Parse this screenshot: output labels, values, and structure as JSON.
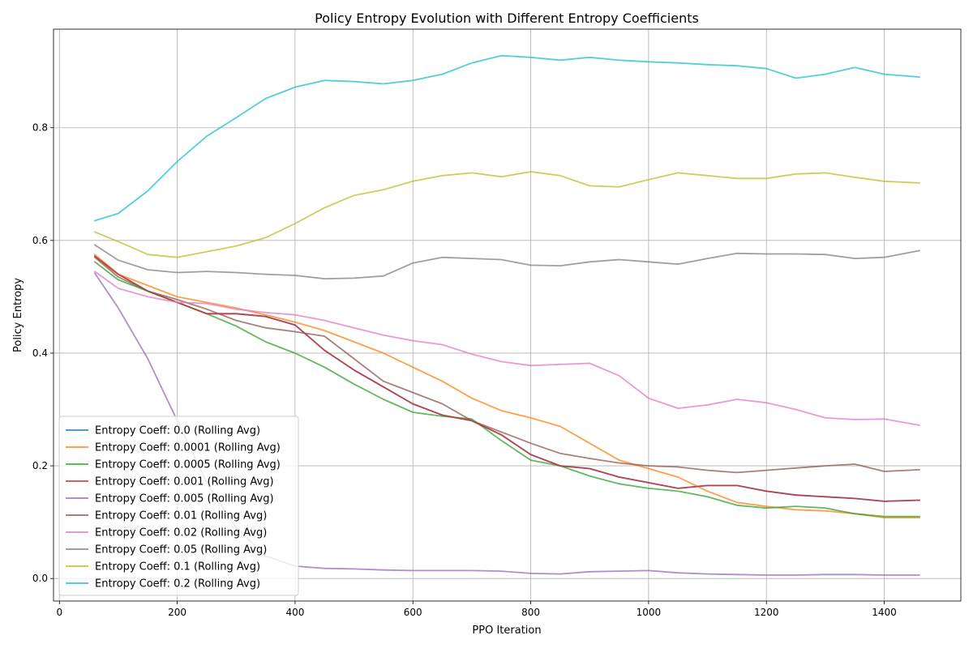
{
  "chart_data": {
    "type": "line",
    "title": "Policy Entropy Evolution with Different Entropy Coefficients",
    "xlabel": "PPO Iteration",
    "ylabel": "Policy Entropy",
    "xlim": [
      -10,
      1530
    ],
    "ylim": [
      -0.04,
      0.975
    ],
    "x_ticks": [
      0,
      200,
      400,
      600,
      800,
      1000,
      1200,
      1400
    ],
    "y_ticks": [
      0.0,
      0.2,
      0.4,
      0.6,
      0.8
    ],
    "x_tick_labels": [
      "0",
      "200",
      "400",
      "600",
      "800",
      "1000",
      "1200",
      "1400"
    ],
    "y_tick_labels": [
      "0.0",
      "0.2",
      "0.4",
      "0.6",
      "0.8"
    ],
    "grid": true,
    "legend_position": "lower-left",
    "x": [
      60,
      100,
      150,
      200,
      250,
      300,
      350,
      400,
      450,
      500,
      550,
      600,
      650,
      700,
      750,
      800,
      850,
      900,
      950,
      1000,
      1050,
      1100,
      1150,
      1200,
      1250,
      1300,
      1350,
      1400,
      1460
    ],
    "series": [
      {
        "name": "Entropy Coeff: 0.0 (Rolling Avg)",
        "color": "#1f77b4",
        "values": [
          0.572,
          0.54,
          0.51,
          0.49,
          0.47,
          0.47,
          0.465,
          0.45,
          0.405,
          0.37,
          0.34,
          0.31,
          0.29,
          0.28,
          0.255,
          0.22,
          0.2,
          0.195,
          0.18,
          0.17,
          0.16,
          0.165,
          0.165,
          0.155,
          0.148,
          0.145,
          0.142,
          0.137,
          0.139
        ]
      },
      {
        "name": "Entropy Coeff: 0.0001 (Rolling Avg)",
        "color": "#ff7f0e",
        "values": [
          0.575,
          0.54,
          0.52,
          0.5,
          0.49,
          0.48,
          0.468,
          0.455,
          0.44,
          0.42,
          0.4,
          0.375,
          0.35,
          0.32,
          0.298,
          0.285,
          0.27,
          0.24,
          0.21,
          0.195,
          0.18,
          0.155,
          0.135,
          0.128,
          0.122,
          0.12,
          0.115,
          0.108,
          0.108
        ]
      },
      {
        "name": "Entropy Coeff: 0.0005 (Rolling Avg)",
        "color": "#2ca02c",
        "values": [
          0.562,
          0.53,
          0.51,
          0.49,
          0.47,
          0.448,
          0.42,
          0.4,
          0.375,
          0.345,
          0.318,
          0.295,
          0.288,
          0.283,
          0.245,
          0.21,
          0.2,
          0.182,
          0.168,
          0.16,
          0.155,
          0.145,
          0.13,
          0.125,
          0.128,
          0.125,
          0.115,
          0.11,
          0.11
        ]
      },
      {
        "name": "Entropy Coeff: 0.001 (Rolling Avg)",
        "color": "#d62728",
        "values": [
          0.572,
          0.54,
          0.51,
          0.49,
          0.47,
          0.47,
          0.465,
          0.45,
          0.405,
          0.37,
          0.34,
          0.31,
          0.29,
          0.28,
          0.255,
          0.22,
          0.2,
          0.195,
          0.18,
          0.17,
          0.16,
          0.165,
          0.165,
          0.155,
          0.148,
          0.145,
          0.142,
          0.137,
          0.139
        ]
      },
      {
        "name": "Entropy Coeff: 0.005 (Rolling Avg)",
        "color": "#9467bd",
        "values": [
          0.542,
          0.48,
          0.39,
          0.28,
          0.17,
          0.09,
          0.04,
          0.022,
          0.018,
          0.017,
          0.015,
          0.014,
          0.014,
          0.014,
          0.013,
          0.009,
          0.008,
          0.012,
          0.013,
          0.014,
          0.01,
          0.008,
          0.007,
          0.006,
          0.006,
          0.007,
          0.007,
          0.006,
          0.006
        ]
      },
      {
        "name": "Entropy Coeff: 0.01 (Rolling Avg)",
        "color": "#8c564b",
        "values": [
          0.57,
          0.535,
          0.51,
          0.495,
          0.478,
          0.458,
          0.445,
          0.438,
          0.43,
          0.39,
          0.35,
          0.33,
          0.31,
          0.28,
          0.26,
          0.24,
          0.222,
          0.213,
          0.205,
          0.2,
          0.198,
          0.192,
          0.188,
          0.192,
          0.196,
          0.2,
          0.203,
          0.19,
          0.193
        ]
      },
      {
        "name": "Entropy Coeff: 0.02 (Rolling Avg)",
        "color": "#e377c2",
        "values": [
          0.545,
          0.515,
          0.5,
          0.49,
          0.488,
          0.478,
          0.472,
          0.468,
          0.458,
          0.445,
          0.432,
          0.422,
          0.415,
          0.398,
          0.385,
          0.378,
          0.38,
          0.382,
          0.36,
          0.32,
          0.302,
          0.308,
          0.318,
          0.312,
          0.3,
          0.285,
          0.282,
          0.283,
          0.272
        ]
      },
      {
        "name": "Entropy Coeff: 0.05 (Rolling Avg)",
        "color": "#7f7f7f",
        "values": [
          0.592,
          0.565,
          0.548,
          0.543,
          0.545,
          0.543,
          0.54,
          0.538,
          0.532,
          0.533,
          0.537,
          0.56,
          0.57,
          0.568,
          0.566,
          0.556,
          0.555,
          0.562,
          0.566,
          0.562,
          0.558,
          0.568,
          0.577,
          0.576,
          0.576,
          0.575,
          0.568,
          0.57,
          0.582
        ]
      },
      {
        "name": "Entropy Coeff: 0.1 (Rolling Avg)",
        "color": "#bcbd22",
        "values": [
          0.615,
          0.598,
          0.575,
          0.57,
          0.58,
          0.59,
          0.605,
          0.63,
          0.658,
          0.68,
          0.69,
          0.705,
          0.715,
          0.72,
          0.713,
          0.722,
          0.715,
          0.697,
          0.695,
          0.708,
          0.72,
          0.715,
          0.71,
          0.71,
          0.718,
          0.72,
          0.712,
          0.705,
          0.702
        ]
      },
      {
        "name": "Entropy Coeff: 0.2 (Rolling Avg)",
        "color": "#17becf",
        "values": [
          0.635,
          0.648,
          0.688,
          0.74,
          0.785,
          0.818,
          0.852,
          0.872,
          0.884,
          0.882,
          0.878,
          0.884,
          0.895,
          0.915,
          0.928,
          0.925,
          0.92,
          0.925,
          0.92,
          0.917,
          0.915,
          0.912,
          0.91,
          0.905,
          0.888,
          0.895,
          0.907,
          0.895,
          0.89
        ]
      }
    ]
  }
}
